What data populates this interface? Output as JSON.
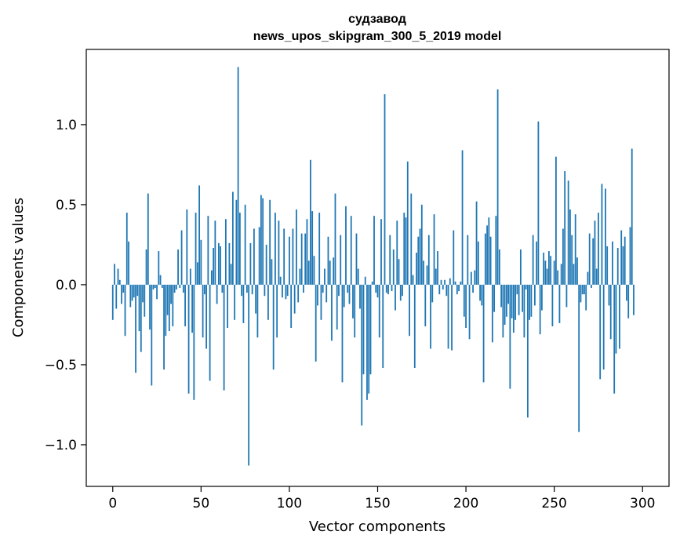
{
  "chart_data": {
    "type": "bar",
    "title_line1": "судзавод",
    "title_line2": "news_upos_skipgram_300_5_2019 model",
    "xlabel": "Vector components",
    "ylabel": "Components values",
    "xlim": [
      -15,
      315
    ],
    "ylim": [
      -1.26,
      1.47
    ],
    "x_ticks": [
      0,
      50,
      100,
      150,
      200,
      250,
      300
    ],
    "x_tick_labels": [
      "0",
      "50",
      "100",
      "150",
      "200",
      "250",
      "300"
    ],
    "y_ticks": [
      -1.0,
      -0.5,
      0.0,
      0.5,
      1.0
    ],
    "y_tick_labels": [
      "−1.0",
      "−0.5",
      "0.0",
      "0.5",
      "1.0"
    ],
    "bar_color": "#1f77b4",
    "grid": false,
    "values": [
      -0.22,
      0.13,
      -0.15,
      0.1,
      0.03,
      -0.12,
      -0.05,
      -0.32,
      0.45,
      0.27,
      -0.14,
      -0.1,
      -0.08,
      -0.55,
      -0.07,
      -0.29,
      -0.42,
      -0.11,
      -0.2,
      0.22,
      0.57,
      -0.28,
      -0.63,
      -0.03,
      -0.02,
      -0.09,
      0.21,
      0.06,
      -0.02,
      -0.53,
      -0.32,
      -0.19,
      -0.29,
      -0.12,
      -0.26,
      -0.05,
      -0.03,
      0.22,
      -0.02,
      0.34,
      -0.05,
      -0.26,
      0.47,
      -0.68,
      0.1,
      -0.3,
      -0.72,
      0.45,
      0.14,
      0.62,
      0.28,
      -0.33,
      -0.06,
      -0.4,
      0.43,
      -0.6,
      0.09,
      0.23,
      0.4,
      -0.12,
      0.26,
      0.24,
      -0.05,
      -0.66,
      0.41,
      -0.27,
      0.26,
      0.13,
      0.58,
      -0.22,
      0.53,
      1.36,
      0.45,
      -0.07,
      -0.24,
      0.5,
      -0.05,
      -1.13,
      0.26,
      -0.06,
      0.35,
      -0.18,
      -0.33,
      0.36,
      0.56,
      0.54,
      -0.07,
      0.25,
      -0.22,
      0.53,
      0.16,
      -0.53,
      0.45,
      -0.33,
      0.4,
      0.05,
      -0.08,
      0.35,
      -0.09,
      -0.07,
      0.3,
      -0.27,
      0.35,
      -0.18,
      0.47,
      -0.11,
      0.1,
      0.32,
      -0.05,
      0.32,
      0.41,
      0.15,
      0.78,
      0.46,
      0.18,
      -0.48,
      -0.13,
      0.45,
      -0.22,
      -0.05,
      0.1,
      -0.11,
      0.3,
      0.15,
      -0.35,
      0.17,
      0.57,
      -0.28,
      -0.07,
      0.31,
      -0.61,
      -0.14,
      0.49,
      -0.05,
      -0.12,
      0.43,
      -0.21,
      -0.33,
      0.32,
      0.1,
      -0.15,
      -0.88,
      -0.56,
      0.05,
      -0.72,
      -0.68,
      -0.56,
      0.02,
      0.43,
      -0.05,
      -0.08,
      -0.33,
      0.41,
      -0.52,
      1.19,
      -0.05,
      -0.06,
      0.31,
      -0.04,
      0.22,
      -0.16,
      0.4,
      0.16,
      -0.1,
      -0.07,
      0.45,
      0.42,
      0.77,
      -0.32,
      0.57,
      0.06,
      -0.52,
      0.2,
      0.3,
      0.35,
      0.5,
      0.15,
      -0.26,
      0.12,
      0.31,
      -0.4,
      -0.11,
      0.44,
      0.1,
      0.21,
      -0.06,
      0.03,
      -0.03,
      0.03,
      -0.07,
      -0.4,
      0.04,
      -0.41,
      0.34,
      0.02,
      -0.06,
      -0.04,
      0.02,
      0.84,
      -0.2,
      -0.27,
      0.31,
      -0.34,
      0.08,
      -0.05,
      0.09,
      0.52,
      0.27,
      -0.1,
      -0.13,
      -0.61,
      0.32,
      0.37,
      0.42,
      0.3,
      -0.36,
      -0.17,
      0.43,
      1.22,
      0.22,
      -0.14,
      -0.33,
      -0.25,
      -0.2,
      -0.12,
      -0.65,
      -0.21,
      -0.3,
      -0.22,
      -0.06,
      -0.19,
      0.22,
      -0.17,
      -0.33,
      -0.03,
      -0.83,
      -0.22,
      -0.2,
      0.31,
      -0.13,
      0.27,
      1.02,
      -0.31,
      -0.16,
      0.2,
      0.15,
      0.1,
      0.21,
      0.18,
      -0.26,
      0.15,
      0.8,
      0.09,
      -0.24,
      0.13,
      0.35,
      0.71,
      -0.14,
      0.65,
      0.47,
      0.31,
      0.13,
      0.44,
      0.17,
      -0.92,
      -0.11,
      -0.06,
      -0.06,
      -0.16,
      0.08,
      0.32,
      -0.02,
      0.29,
      0.4,
      0.1,
      0.45,
      -0.59,
      0.63,
      -0.53,
      0.6,
      0.24,
      -0.13,
      -0.34,
      0.27,
      -0.68,
      -0.43,
      0.23,
      -0.4,
      0.34,
      0.24,
      0.3,
      -0.1,
      -0.21,
      0.36,
      0.85,
      -0.19
    ]
  }
}
